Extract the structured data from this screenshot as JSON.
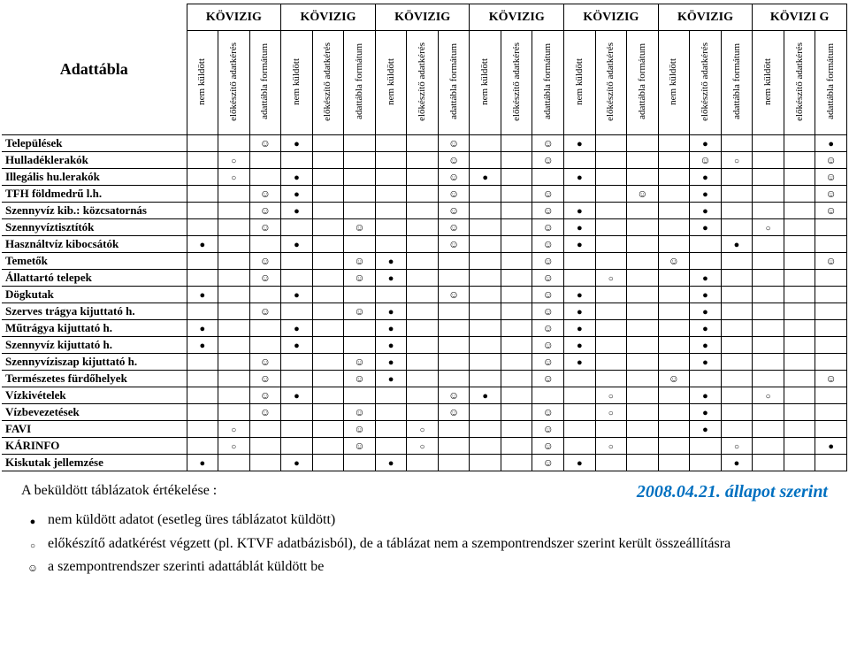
{
  "table": {
    "corner_label": "Adattábla",
    "group_header": "KÖVIZIG",
    "group_header_last": "KÖVIZI G",
    "sub_headers": [
      "nem küldött",
      "előkészítő adatkérés",
      "adattábla formátum"
    ],
    "rows": [
      "Települések",
      "Hulladéklerakók",
      "Illegális hu.lerakók",
      "TFH földmedrű l.h.",
      "Szennyvíz kib.: közcsatornás",
      "Szennyvíztisztítók",
      "Használtvíz kibocsátók",
      "Temetők",
      "Állattartó telepek",
      "Dögkutak",
      "Szerves trágya kijuttató h.",
      "Műtrágya kijuttató h.",
      "Szennyvíz kijuttató h.",
      "Szennyvíziszap kijuttató h.",
      "Természetes fürdőhelyek",
      "Vízkivételek",
      "Vízbevezetések",
      "FAVI",
      "KÁRINFO",
      "Kiskutak jellemzése"
    ],
    "cells": [
      [
        "",
        "",
        "s",
        "d",
        "",
        "",
        "",
        "",
        "s",
        "",
        "",
        "s",
        "d",
        "",
        "",
        "",
        "d",
        "",
        "",
        "",
        "d"
      ],
      [
        "",
        "c",
        "",
        "",
        "",
        "",
        "",
        "",
        "s",
        "",
        "",
        "s",
        "",
        "",
        "",
        "",
        "s",
        "c",
        "",
        "",
        "s"
      ],
      [
        "",
        "c",
        "",
        "d",
        "",
        "",
        "",
        "",
        "s",
        "d",
        "",
        "",
        "d",
        "",
        "",
        "",
        "d",
        "",
        "",
        "",
        "s"
      ],
      [
        "",
        "",
        "s",
        "d",
        "",
        "",
        "",
        "",
        "s",
        "",
        "",
        "s",
        "",
        "",
        "s",
        "",
        "d",
        "",
        "",
        "",
        "s"
      ],
      [
        "",
        "",
        "s",
        "d",
        "",
        "",
        "",
        "",
        "s",
        "",
        "",
        "s",
        "d",
        "",
        "",
        "",
        "d",
        "",
        "",
        "",
        "s"
      ],
      [
        "",
        "",
        "s",
        "",
        "",
        "s",
        "",
        "",
        "s",
        "",
        "",
        "s",
        "d",
        "",
        "",
        "",
        "d",
        "",
        "c",
        "",
        ""
      ],
      [
        "d",
        "",
        "",
        "d",
        "",
        "",
        "",
        "",
        "s",
        "",
        "",
        "s",
        "d",
        "",
        "",
        "",
        "",
        "d",
        "",
        "",
        ""
      ],
      [
        "",
        "",
        "s",
        "",
        "",
        "s",
        "d",
        "",
        "",
        "",
        "",
        "s",
        "",
        "",
        "",
        "s",
        "",
        "",
        "",
        "",
        "s"
      ],
      [
        "",
        "",
        "s",
        "",
        "",
        "s",
        "d",
        "",
        "",
        "",
        "",
        "s",
        "",
        "c",
        "",
        "",
        "d",
        "",
        "",
        "",
        ""
      ],
      [
        "d",
        "",
        "",
        "d",
        "",
        "",
        "",
        "",
        "s",
        "",
        "",
        "s",
        "d",
        "",
        "",
        "",
        "d",
        "",
        "",
        "",
        ""
      ],
      [
        "",
        "",
        "s",
        "",
        "",
        "s",
        "d",
        "",
        "",
        "",
        "",
        "s",
        "d",
        "",
        "",
        "",
        "d",
        "",
        "",
        "",
        ""
      ],
      [
        "d",
        "",
        "",
        "d",
        "",
        "",
        "d",
        "",
        "",
        "",
        "",
        "s",
        "d",
        "",
        "",
        "",
        "d",
        "",
        "",
        "",
        ""
      ],
      [
        "d",
        "",
        "",
        "d",
        "",
        "",
        "d",
        "",
        "",
        "",
        "",
        "s",
        "d",
        "",
        "",
        "",
        "d",
        "",
        "",
        "",
        ""
      ],
      [
        "",
        "",
        "s",
        "",
        "",
        "s",
        "d",
        "",
        "",
        "",
        "",
        "s",
        "d",
        "",
        "",
        "",
        "d",
        "",
        "",
        "",
        ""
      ],
      [
        "",
        "",
        "s",
        "",
        "",
        "s",
        "d",
        "",
        "",
        "",
        "",
        "s",
        "",
        "",
        "",
        "s",
        "",
        "",
        "",
        "",
        "s"
      ],
      [
        "",
        "",
        "s",
        "d",
        "",
        "",
        "",
        "",
        "s",
        "d",
        "",
        "",
        "",
        "c",
        "",
        "",
        "d",
        "",
        "c",
        "",
        ""
      ],
      [
        "",
        "",
        "s",
        "",
        "",
        "s",
        "",
        "",
        "s",
        "",
        "",
        "s",
        "",
        "c",
        "",
        "",
        "d",
        "",
        "",
        "",
        ""
      ],
      [
        "",
        "c",
        "",
        "",
        "",
        "s",
        "",
        "c",
        "",
        "",
        "",
        "s",
        "",
        "",
        "",
        "",
        "d",
        "",
        "",
        "",
        ""
      ],
      [
        "",
        "c",
        "",
        "",
        "",
        "s",
        "",
        "c",
        "",
        "",
        "",
        "s",
        "",
        "c",
        "",
        "",
        "",
        "c",
        "",
        "",
        "d"
      ],
      [
        "d",
        "",
        "",
        "d",
        "",
        "",
        "d",
        "",
        "",
        "",
        "",
        "s",
        "d",
        "",
        "",
        "",
        "",
        "d",
        "",
        "",
        ""
      ]
    ]
  },
  "footer": {
    "eval": "A beküldött táblázatok értékelése :",
    "date": "2008.04.21. állapot szerint",
    "legend": [
      {
        "sym": "d",
        "text": "nem küldött adatot (esetleg üres táblázatot küldött)"
      },
      {
        "sym": "c",
        "text": "előkészítő adatkérést végzett (pl. KTVF adatbázisból), de a táblázat nem a szempontrendszer szerint került összeállításra"
      },
      {
        "sym": "s",
        "text": "a szempontrendszer szerinti adattáblát küldött be"
      }
    ]
  },
  "style": {
    "accent_blue": "#0070c0"
  }
}
